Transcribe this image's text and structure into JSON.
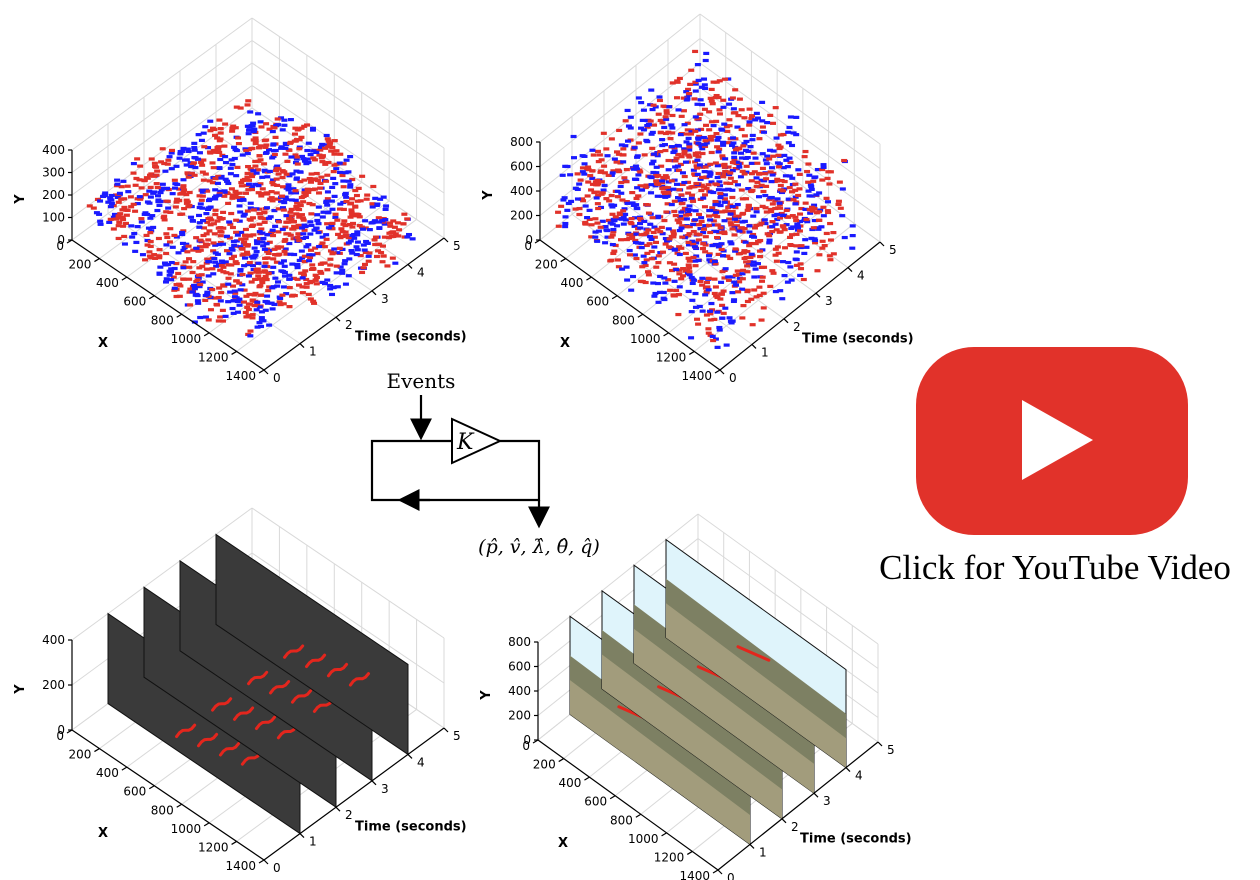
{
  "youtube": {
    "caption": "Click for YouTube Video",
    "icon": "youtube-play-icon",
    "color": "#e1322a"
  },
  "diagram": {
    "input_label": "Events",
    "gain_label": "K",
    "output_label": "(p̂, v̂, λ̂, θ̂, q̂)"
  },
  "colors": {
    "positive_events": "#e1322a",
    "negative_events": "#1a1aff",
    "track": "#e3261d"
  },
  "chart_data": [
    {
      "type": "scatter",
      "view": "3d",
      "panel": "top-left",
      "content": "event point cloud (red/blue polarity)",
      "xlabel": "X",
      "ylabel": "Y",
      "zlabel": "Time (seconds)",
      "xticks": [
        "0",
        "200",
        "400",
        "600",
        "800",
        "1000",
        "1200",
        "1400"
      ],
      "yticks": [
        "0",
        "100",
        "200",
        "300",
        "400"
      ],
      "tticks": [
        "0",
        "1",
        "2",
        "3",
        "4",
        "5"
      ],
      "xlim": [
        0,
        1400
      ],
      "ylim": [
        0,
        400
      ],
      "tlim": [
        0,
        5
      ]
    },
    {
      "type": "scatter",
      "view": "3d",
      "panel": "top-right",
      "content": "event point cloud (red/blue polarity)",
      "xlabel": "X",
      "ylabel": "Y",
      "zlabel": "Time (seconds)",
      "xticks": [
        "0",
        "200",
        "400",
        "600",
        "800",
        "1000",
        "1200",
        "1400"
      ],
      "yticks": [
        "0",
        "200",
        "400",
        "600",
        "800"
      ],
      "tticks": [
        "0",
        "1",
        "2",
        "3",
        "4",
        "5"
      ],
      "xlim": [
        0,
        1400
      ],
      "ylim": [
        0,
        800
      ],
      "tlim": [
        0,
        5
      ]
    },
    {
      "type": "line",
      "view": "3d",
      "panel": "bottom-left",
      "content": "image frames with red feature tracks",
      "xlabel": "X",
      "ylabel": "Y",
      "zlabel": "Time (seconds)",
      "xticks": [
        "0",
        "200",
        "400",
        "600",
        "800",
        "1000",
        "1200",
        "1400"
      ],
      "yticks": [
        "0",
        "200",
        "400"
      ],
      "tticks": [
        "0",
        "1",
        "2",
        "3",
        "4",
        "5"
      ],
      "xlim": [
        0,
        1400
      ],
      "ylim": [
        0,
        400
      ],
      "tlim": [
        0,
        5
      ],
      "frame_times": [
        1,
        2,
        3,
        4
      ]
    },
    {
      "type": "line",
      "view": "3d",
      "panel": "bottom-right",
      "content": "image frames with red feature tracks",
      "xlabel": "X",
      "ylabel": "Y",
      "zlabel": "Time (seconds)",
      "xticks": [
        "0",
        "200",
        "400",
        "600",
        "800",
        "1000",
        "1200",
        "1400"
      ],
      "yticks": [
        "0",
        "200",
        "400",
        "600",
        "800"
      ],
      "tticks": [
        "0",
        "1",
        "2",
        "3",
        "4",
        "5"
      ],
      "xlim": [
        0,
        1400
      ],
      "ylim": [
        0,
        800
      ],
      "tlim": [
        0,
        5
      ],
      "frame_times": [
        1,
        2,
        3,
        4
      ]
    }
  ]
}
